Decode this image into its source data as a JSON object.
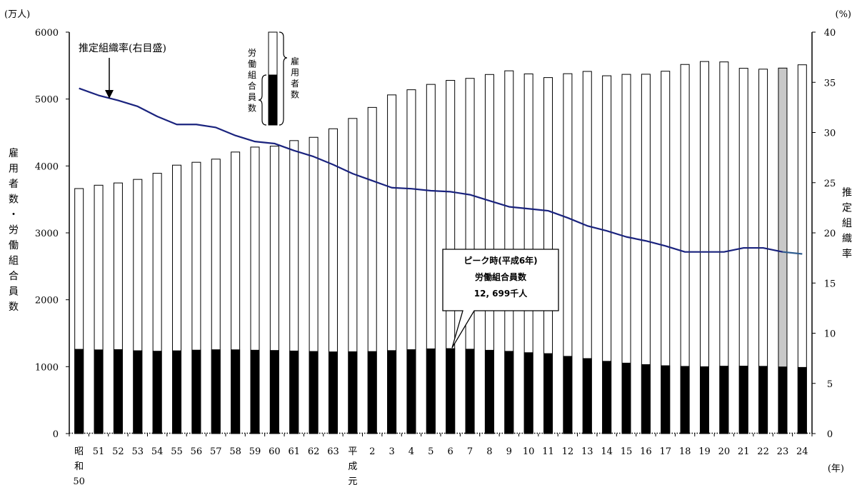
{
  "chart_data": {
    "type": "bar",
    "left_axis": {
      "unit": "(万人)",
      "label_chars": [
        "雇",
        "用",
        "者",
        "数",
        "・",
        "労",
        "働",
        "組",
        "合",
        "員",
        "数"
      ],
      "min": 0,
      "max": 6000,
      "ticks": [
        "0",
        "1000",
        "2000",
        "3000",
        "4000",
        "5000",
        "6000"
      ]
    },
    "right_axis": {
      "unit": "(%)",
      "label_chars": [
        "推",
        "定",
        "組",
        "織",
        "率"
      ],
      "min": 0,
      "max": 40,
      "ticks": [
        "0",
        "5",
        "10",
        "15",
        "20",
        "25",
        "30",
        "35",
        "40"
      ]
    },
    "x_unit": "(年)",
    "categories": [
      [
        "昭",
        "和",
        "50"
      ],
      [
        "51"
      ],
      [
        "52"
      ],
      [
        "53"
      ],
      [
        "54"
      ],
      [
        "55"
      ],
      [
        "56"
      ],
      [
        "57"
      ],
      [
        "58"
      ],
      [
        "59"
      ],
      [
        "60"
      ],
      [
        "61"
      ],
      [
        "62"
      ],
      [
        "63"
      ],
      [
        "平",
        "成",
        "元"
      ],
      [
        "2"
      ],
      [
        "3"
      ],
      [
        "4"
      ],
      [
        "5"
      ],
      [
        "6"
      ],
      [
        "7"
      ],
      [
        "8"
      ],
      [
        "9"
      ],
      [
        "10"
      ],
      [
        "11"
      ],
      [
        "12"
      ],
      [
        "13"
      ],
      [
        "14"
      ],
      [
        "15"
      ],
      [
        "16"
      ],
      [
        "17"
      ],
      [
        "18"
      ],
      [
        "19"
      ],
      [
        "20"
      ],
      [
        "21"
      ],
      [
        "22"
      ],
      [
        "23"
      ],
      [
        "24"
      ]
    ],
    "series": [
      {
        "name": "雇用者数",
        "values": [
          3662,
          3712,
          3746,
          3799,
          3890,
          4012,
          4055,
          4102,
          4208,
          4282,
          4296,
          4379,
          4428,
          4556,
          4710,
          4875,
          5062,
          5139,
          5219,
          5279,
          5309,
          5367,
          5422,
          5376,
          5321,
          5379,
          5413,
          5348,
          5369,
          5371,
          5416,
          5517,
          5561,
          5555,
          5460,
          5447,
          5463,
          5512
        ]
      },
      {
        "name": "労働組合員数",
        "values": [
          1259,
          1251,
          1255,
          1238,
          1231,
          1237,
          1247,
          1253,
          1252,
          1246,
          1242,
          1234,
          1227,
          1221,
          1223,
          1226,
          1240,
          1254,
          1266,
          1270,
          1261,
          1245,
          1229,
          1209,
          1195,
          1154,
          1121,
          1080,
          1053,
          1031,
          1014,
          1004,
          999,
          1007,
          1008,
          1005,
          996,
          989
        ]
      },
      {
        "name": "推定組織率",
        "axis": "right",
        "values": [
          34.4,
          33.7,
          33.2,
          32.6,
          31.6,
          30.8,
          30.8,
          30.5,
          29.7,
          29.1,
          28.9,
          28.2,
          27.6,
          26.8,
          25.9,
          25.2,
          24.5,
          24.4,
          24.2,
          24.1,
          23.8,
          23.2,
          22.6,
          22.4,
          22.2,
          21.5,
          20.7,
          20.2,
          19.6,
          19.2,
          18.7,
          18.1,
          18.1,
          18.1,
          18.5,
          18.5,
          18.1,
          17.9
        ]
      }
    ],
    "highlight_index": 36,
    "annotations": {
      "rate_label": "推定組織率(右目盛)",
      "legend_union": [
        "労",
        "働",
        "組",
        "合",
        "員",
        "数"
      ],
      "legend_employee": [
        "雇",
        "用",
        "者",
        "数"
      ],
      "peak": [
        "ピーク時(平成6年)",
        "労働組合員数",
        "12, 699千人"
      ]
    },
    "colors": {
      "employee_bar": "#ffffff",
      "union_bar": "#000000",
      "highlight_bar": "#c8c8c8",
      "rate_line": "#1a237e",
      "rate_line_last": "#2f5c8f"
    }
  }
}
